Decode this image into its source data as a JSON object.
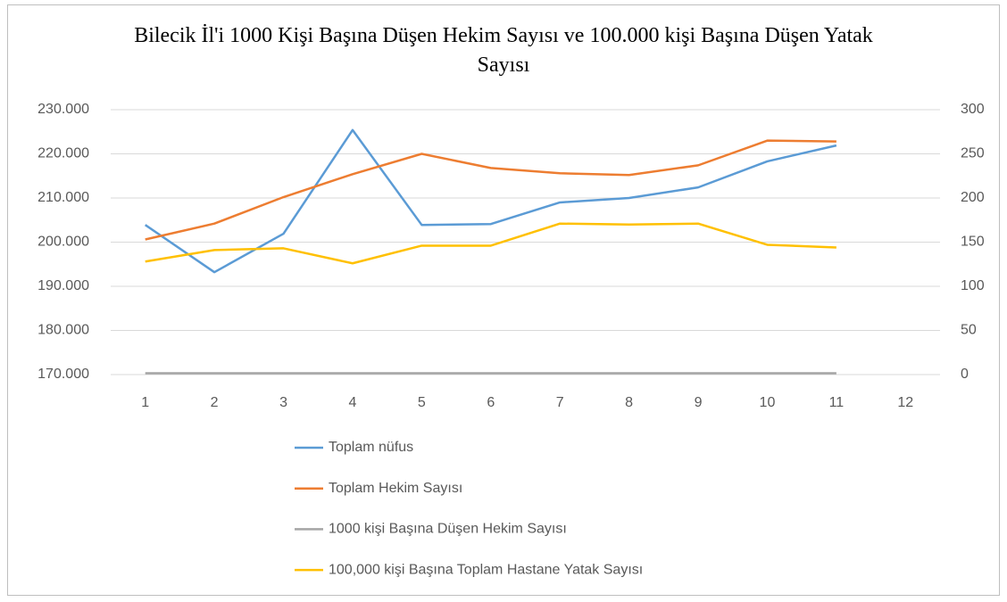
{
  "chart_data": {
    "type": "line",
    "title": "Bilecik İl'i 1000 Kişi Başına Düşen Hekim Sayısı ve 100.000 kişi Başına Düşen Yatak Sayısı",
    "categories": [
      "1",
      "2",
      "3",
      "4",
      "5",
      "6",
      "7",
      "8",
      "9",
      "10",
      "11",
      "12"
    ],
    "series": [
      {
        "name": "Toplam nüfus",
        "color": "#5b9bd5",
        "axis": "y",
        "values": [
          203900,
          193200,
          201900,
          225400,
          203900,
          204100,
          209000,
          210000,
          212400,
          218300,
          221900,
          null
        ]
      },
      {
        "name": "Toplam Hekim Sayısı",
        "color": "#ed7d31",
        "axis": "y2",
        "values": [
          153,
          171,
          201,
          227,
          250,
          234,
          228,
          226,
          237,
          265,
          264,
          null
        ]
      },
      {
        "name": "1000 kişi Başına Düşen Hekim Sayısı",
        "color": "#a5a5a5",
        "axis": "y2",
        "values": [
          1.5,
          1.5,
          1.5,
          1.5,
          1.5,
          1.5,
          1.5,
          1.5,
          1.5,
          1.5,
          1.5,
          null
        ]
      },
      {
        "name": "100,000 kişi Başına Toplam Hastane Yatak Sayısı",
        "color": "#ffc000",
        "axis": "y2",
        "values": [
          128,
          141,
          143,
          126,
          146,
          146,
          171,
          170,
          171,
          147,
          144,
          null
        ]
      }
    ],
    "ylim": [
      170000,
      230000
    ],
    "yticks": [
      {
        "value": 170000,
        "label": "170.000"
      },
      {
        "value": 180000,
        "label": "180.000"
      },
      {
        "value": 190000,
        "label": "190.000"
      },
      {
        "value": 200000,
        "label": "200.000"
      },
      {
        "value": 210000,
        "label": "210.000"
      },
      {
        "value": 220000,
        "label": "220.000"
      },
      {
        "value": 230000,
        "label": "230.000"
      }
    ],
    "y2lim": [
      0,
      300
    ],
    "y2ticks": [
      0,
      50,
      100,
      150,
      200,
      250,
      300
    ],
    "grid": true,
    "legend": "bottom"
  }
}
